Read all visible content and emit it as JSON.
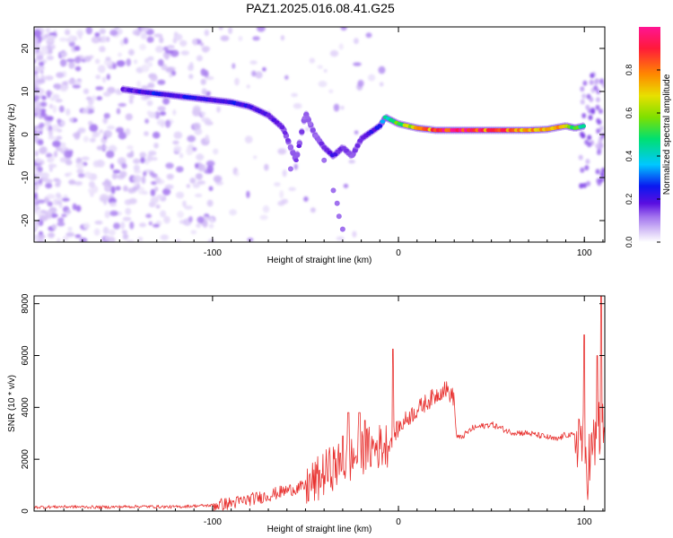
{
  "title": "PAZ1.2025.016.08.41.G25",
  "colors": {
    "snr_line": "#e8312f",
    "colormap": [
      "#ffffff",
      "#d9c7f7",
      "#a070ee",
      "#5a0ee0",
      "#0a18f0",
      "#00c8ff",
      "#00e070",
      "#7fe000",
      "#e8e000",
      "#ff8800",
      "#ff1a3a",
      "#ff1493"
    ]
  },
  "chart_data": [
    {
      "type": "heatmap",
      "title": "PAZ1.2025.016.08.41.G25",
      "xlabel": "Height of straight line (km)",
      "ylabel": "Frequency (Hz)",
      "xlim": [
        -196,
        111
      ],
      "ylim": [
        -25,
        25
      ],
      "xticks": [
        -100,
        0,
        100
      ],
      "yticks": [
        -20,
        -10,
        0,
        10,
        20
      ],
      "colorbar": {
        "label": "Normalized spectral amplitude",
        "range": [
          0,
          1
        ],
        "ticks": [
          "0.0",
          "0.2",
          "0.4",
          "0.6",
          "0.8"
        ]
      },
      "ridge": {
        "x": [
          -148,
          -140,
          -130,
          -120,
          -110,
          -100,
          -90,
          -80,
          -70,
          -62,
          -58,
          -55,
          -50,
          -45,
          -40,
          -35,
          -30,
          -25,
          -20,
          -15,
          -10,
          -7,
          0,
          10,
          20,
          30,
          40,
          50,
          60,
          70,
          80,
          90,
          95,
          100
        ],
        "freq": [
          10.5,
          10,
          9.5,
          9,
          8.5,
          8,
          7.5,
          6.5,
          4.5,
          1.5,
          -3,
          -6,
          5,
          0,
          -3,
          -5,
          -3,
          -5,
          -1,
          0.5,
          2,
          4,
          2.5,
          1.5,
          1,
          1,
          1,
          1,
          1,
          1,
          1.2,
          2,
          1.5,
          2
        ],
        "amplitude": [
          0.25,
          0.3,
          0.35,
          0.3,
          0.35,
          0.3,
          0.35,
          0.3,
          0.3,
          0.25,
          0.2,
          0.25,
          0.2,
          0.2,
          0.25,
          0.3,
          0.25,
          0.2,
          0.25,
          0.3,
          0.35,
          0.5,
          0.6,
          0.75,
          0.9,
          1.0,
          0.95,
          0.85,
          0.9,
          0.8,
          0.85,
          0.7,
          0.6,
          0.5
        ]
      }
    },
    {
      "type": "line",
      "xlabel": "Height of straight line (km)",
      "ylabel": "SNR (10 * v/v)",
      "xlim": [
        -196,
        111
      ],
      "ylim": [
        0,
        8300
      ],
      "xticks": [
        -100,
        0,
        100
      ],
      "yticks": [
        0,
        2000,
        4000,
        6000,
        8000
      ],
      "x": [
        -196,
        -180,
        -160,
        -140,
        -120,
        -110,
        -100,
        -90,
        -80,
        -70,
        -60,
        -50,
        -45,
        -40,
        -35,
        -30,
        -25,
        -20,
        -15,
        -10,
        -5,
        -2,
        0,
        5,
        10,
        15,
        20,
        25,
        28,
        30,
        31,
        33,
        40,
        50,
        60,
        70,
        80,
        85,
        90,
        95,
        98,
        100,
        102,
        104,
        106,
        108,
        111
      ],
      "values": [
        150,
        170,
        150,
        180,
        160,
        200,
        220,
        300,
        450,
        600,
        800,
        950,
        1100,
        1450,
        1700,
        1800,
        2000,
        2300,
        2400,
        2500,
        2600,
        3000,
        3200,
        3600,
        3900,
        4200,
        4450,
        4750,
        4500,
        4350,
        2950,
        2800,
        3200,
        3350,
        3050,
        3000,
        2850,
        2750,
        2950,
        2900,
        3000,
        2200,
        1800,
        2200,
        2600,
        3000,
        2900
      ],
      "spikes": [
        {
          "x": -30,
          "value": 2900
        },
        {
          "x": -27,
          "value": 3800
        },
        {
          "x": -21,
          "value": 3800
        },
        {
          "x": -18,
          "value": 3500
        },
        {
          "x": -3,
          "value": 6250
        },
        {
          "x": 100,
          "value": 6800
        },
        {
          "x": 107,
          "value": 6000
        },
        {
          "x": 109,
          "value": 8300
        }
      ]
    }
  ]
}
